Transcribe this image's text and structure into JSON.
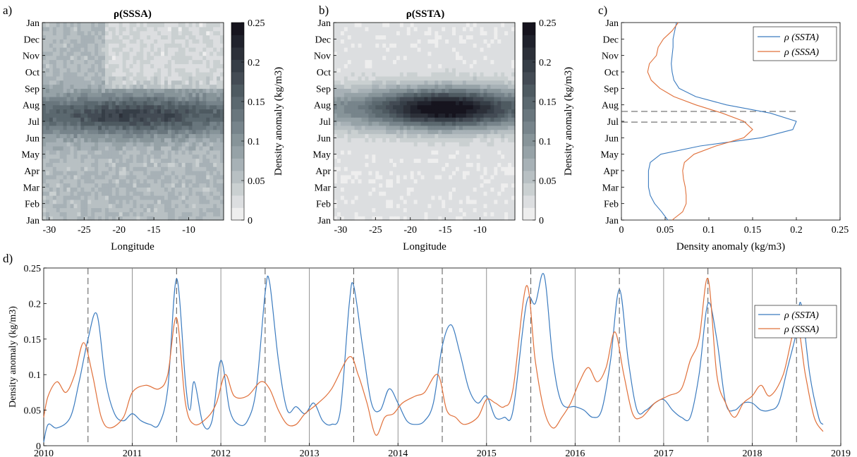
{
  "panel_labels": {
    "a": "a)",
    "b": "b)",
    "c": "c)",
    "d": "d)"
  },
  "colors": {
    "ssta": "#3b7bbf",
    "sssa": "#e0703a",
    "dash": "#555555",
    "cmap_low": "#eeeeee",
    "cmap_high": "#111111"
  },
  "chart_data": [
    {
      "type": "heatmap",
      "title": "ρ(SSSA)",
      "xlabel": "Longitude",
      "ylabel": "",
      "xlim": [
        -31,
        -5
      ],
      "xticks": [
        -30,
        -25,
        -20,
        -15,
        -10
      ],
      "yticks": [
        "Jan",
        "Feb",
        "Mar",
        "Apr",
        "May",
        "Jun",
        "Jul",
        "Aug",
        "Sep",
        "Oct",
        "Nov",
        "Dec",
        "Jan"
      ],
      "colorbar": {
        "label": "Density anomaly (kg/m3)",
        "ticks": [
          "0",
          "0.05",
          "0.1",
          "0.15",
          "0.2",
          "0.25"
        ],
        "range": [
          0,
          0.25
        ],
        "levels": 16
      },
      "peak_month": 6.4,
      "peak_value": 0.19,
      "background_value": 0.06
    },
    {
      "type": "heatmap",
      "title": "ρ(SSTA)",
      "xlabel": "Longitude",
      "ylabel": "",
      "xlim": [
        -31,
        -5
      ],
      "xticks": [
        -30,
        -25,
        -20,
        -15,
        -10
      ],
      "yticks": [
        "Jan",
        "Feb",
        "Mar",
        "Apr",
        "May",
        "Jun",
        "Jul",
        "Aug",
        "Sep",
        "Oct",
        "Nov",
        "Dec",
        "Jan"
      ],
      "colorbar": {
        "label": "Density anomaly (kg/m3)",
        "ticks": [
          "0",
          "0.05",
          "0.1",
          "0.15",
          "0.2",
          "0.25"
        ],
        "range": [
          0,
          0.25
        ],
        "levels": 16
      },
      "peak_month": 6.8,
      "peak_value": 0.26,
      "background_value": 0.02
    },
    {
      "type": "line",
      "xlabel": "Density anomaly (kg/m3)",
      "ylabel": "",
      "xlim": [
        0,
        0.25
      ],
      "xticks": [
        "0",
        "0.05",
        "0.1",
        "0.15",
        "0.2",
        "0.25"
      ],
      "yticks": [
        "Jan",
        "Feb",
        "Mar",
        "Apr",
        "May",
        "Jun",
        "Jul",
        "Aug",
        "Sep",
        "Oct",
        "Nov",
        "Dec",
        "Jan"
      ],
      "legend": {
        "position": "top-right",
        "entries": [
          "ρ (SSTA)",
          "ρ (SSSA)"
        ]
      },
      "month": [
        0,
        0.5,
        1,
        1.5,
        2,
        2.5,
        3,
        3.5,
        4,
        4.5,
        5,
        5.5,
        6,
        6.5,
        7,
        7.5,
        8,
        8.5,
        9,
        9.5,
        10,
        10.5,
        11,
        11.5,
        12
      ],
      "series": [
        {
          "name": "ρ (SSTA)",
          "values": [
            0.053,
            0.046,
            0.038,
            0.033,
            0.031,
            0.031,
            0.031,
            0.033,
            0.045,
            0.09,
            0.16,
            0.196,
            0.2,
            0.17,
            0.12,
            0.085,
            0.066,
            0.06,
            0.058,
            0.057,
            0.058,
            0.059,
            0.059,
            0.061,
            0.063
          ]
        },
        {
          "name": "ρ (SSSA)",
          "values": [
            0.058,
            0.07,
            0.074,
            0.074,
            0.073,
            0.071,
            0.07,
            0.072,
            0.083,
            0.108,
            0.14,
            0.15,
            0.14,
            0.115,
            0.085,
            0.06,
            0.044,
            0.034,
            0.03,
            0.032,
            0.04,
            0.042,
            0.048,
            0.058,
            0.065
          ]
        }
      ],
      "dashed_lines_at_month": [
        6.6,
        5.95
      ]
    },
    {
      "type": "line",
      "xlabel": "",
      "ylabel": "Density anomaly (kg/m3)",
      "xlim": [
        2010,
        2019
      ],
      "ylim": [
        0,
        0.25
      ],
      "xticks": [
        "2010",
        "2011",
        "2012",
        "2013",
        "2014",
        "2015",
        "2016",
        "2017",
        "2018",
        "2019"
      ],
      "yticks": [
        "0",
        "0.05",
        "0.1",
        "0.15",
        "0.2",
        "0.25"
      ],
      "legend": {
        "position": "top-right",
        "entries": [
          "ρ (SSTA)",
          "ρ (SSSA)"
        ]
      },
      "dashed_lines_at_year": [
        2010.5,
        2011.5,
        2012.5,
        2013.5,
        2014.5,
        2015.5,
        2016.5,
        2017.5,
        2018.5
      ],
      "series": [
        {
          "name": "ρ (SSTA)",
          "points": [
            [
              2010.0,
              0.005
            ],
            [
              2010.05,
              0.03
            ],
            [
              2010.15,
              0.025
            ],
            [
              2010.3,
              0.04
            ],
            [
              2010.4,
              0.09
            ],
            [
              2010.5,
              0.15
            ],
            [
              2010.6,
              0.185
            ],
            [
              2010.7,
              0.09
            ],
            [
              2010.8,
              0.045
            ],
            [
              2010.9,
              0.035
            ],
            [
              2011.0,
              0.045
            ],
            [
              2011.1,
              0.035
            ],
            [
              2011.2,
              0.03
            ],
            [
              2011.3,
              0.03
            ],
            [
              2011.4,
              0.08
            ],
            [
              2011.5,
              0.235
            ],
            [
              2011.6,
              0.09
            ],
            [
              2011.65,
              0.05
            ],
            [
              2011.7,
              0.09
            ],
            [
              2011.8,
              0.03
            ],
            [
              2011.9,
              0.035
            ],
            [
              2012.0,
              0.12
            ],
            [
              2012.1,
              0.05
            ],
            [
              2012.2,
              0.03
            ],
            [
              2012.3,
              0.035
            ],
            [
              2012.4,
              0.08
            ],
            [
              2012.5,
              0.215
            ],
            [
              2012.55,
              0.23
            ],
            [
              2012.65,
              0.12
            ],
            [
              2012.75,
              0.05
            ],
            [
              2012.85,
              0.055
            ],
            [
              2012.95,
              0.045
            ],
            [
              2013.05,
              0.06
            ],
            [
              2013.15,
              0.035
            ],
            [
              2013.25,
              0.03
            ],
            [
              2013.35,
              0.05
            ],
            [
              2013.45,
              0.2
            ],
            [
              2013.5,
              0.225
            ],
            [
              2013.6,
              0.14
            ],
            [
              2013.7,
              0.06
            ],
            [
              2013.8,
              0.05
            ],
            [
              2013.9,
              0.08
            ],
            [
              2014.0,
              0.06
            ],
            [
              2014.1,
              0.035
            ],
            [
              2014.2,
              0.03
            ],
            [
              2014.3,
              0.035
            ],
            [
              2014.4,
              0.06
            ],
            [
              2014.5,
              0.14
            ],
            [
              2014.6,
              0.17
            ],
            [
              2014.7,
              0.13
            ],
            [
              2014.8,
              0.08
            ],
            [
              2014.9,
              0.06
            ],
            [
              2015.0,
              0.07
            ],
            [
              2015.1,
              0.04
            ],
            [
              2015.2,
              0.04
            ],
            [
              2015.3,
              0.05
            ],
            [
              2015.45,
              0.2
            ],
            [
              2015.55,
              0.2
            ],
            [
              2015.65,
              0.24
            ],
            [
              2015.75,
              0.12
            ],
            [
              2015.85,
              0.06
            ],
            [
              2016.0,
              0.055
            ],
            [
              2016.1,
              0.05
            ],
            [
              2016.2,
              0.04
            ],
            [
              2016.3,
              0.05
            ],
            [
              2016.4,
              0.12
            ],
            [
              2016.5,
              0.22
            ],
            [
              2016.6,
              0.12
            ],
            [
              2016.7,
              0.05
            ],
            [
              2016.8,
              0.05
            ],
            [
              2016.9,
              0.06
            ],
            [
              2017.0,
              0.065
            ],
            [
              2017.1,
              0.05
            ],
            [
              2017.2,
              0.04
            ],
            [
              2017.3,
              0.04
            ],
            [
              2017.4,
              0.1
            ],
            [
              2017.5,
              0.2
            ],
            [
              2017.6,
              0.15
            ],
            [
              2017.7,
              0.06
            ],
            [
              2017.8,
              0.05
            ],
            [
              2017.9,
              0.06
            ],
            [
              2018.0,
              0.06
            ],
            [
              2018.1,
              0.05
            ],
            [
              2018.2,
              0.05
            ],
            [
              2018.3,
              0.06
            ],
            [
              2018.4,
              0.11
            ],
            [
              2018.5,
              0.16
            ],
            [
              2018.55,
              0.2
            ],
            [
              2018.65,
              0.1
            ],
            [
              2018.75,
              0.04
            ],
            [
              2018.8,
              0.03
            ]
          ]
        },
        {
          "name": "ρ (SSSA)",
          "points": [
            [
              2010.0,
              0.04
            ],
            [
              2010.05,
              0.07
            ],
            [
              2010.15,
              0.09
            ],
            [
              2010.25,
              0.075
            ],
            [
              2010.35,
              0.1
            ],
            [
              2010.45,
              0.145
            ],
            [
              2010.55,
              0.1
            ],
            [
              2010.65,
              0.04
            ],
            [
              2010.75,
              0.025
            ],
            [
              2010.9,
              0.04
            ],
            [
              2011.0,
              0.075
            ],
            [
              2011.15,
              0.085
            ],
            [
              2011.3,
              0.08
            ],
            [
              2011.4,
              0.1
            ],
            [
              2011.5,
              0.18
            ],
            [
              2011.6,
              0.06
            ],
            [
              2011.7,
              0.03
            ],
            [
              2011.85,
              0.04
            ],
            [
              2011.95,
              0.06
            ],
            [
              2012.05,
              0.1
            ],
            [
              2012.15,
              0.07
            ],
            [
              2012.3,
              0.07
            ],
            [
              2012.45,
              0.09
            ],
            [
              2012.55,
              0.08
            ],
            [
              2012.65,
              0.05
            ],
            [
              2012.75,
              0.03
            ],
            [
              2012.85,
              0.03
            ],
            [
              2012.95,
              0.045
            ],
            [
              2013.1,
              0.06
            ],
            [
              2013.25,
              0.08
            ],
            [
              2013.45,
              0.125
            ],
            [
              2013.55,
              0.1
            ],
            [
              2013.65,
              0.06
            ],
            [
              2013.75,
              0.015
            ],
            [
              2013.85,
              0.04
            ],
            [
              2013.95,
              0.045
            ],
            [
              2014.05,
              0.06
            ],
            [
              2014.2,
              0.07
            ],
            [
              2014.3,
              0.075
            ],
            [
              2014.45,
              0.1
            ],
            [
              2014.55,
              0.05
            ],
            [
              2014.65,
              0.04
            ],
            [
              2014.75,
              0.03
            ],
            [
              2014.9,
              0.04
            ],
            [
              2015.0,
              0.065
            ],
            [
              2015.1,
              0.06
            ],
            [
              2015.2,
              0.055
            ],
            [
              2015.3,
              0.08
            ],
            [
              2015.45,
              0.225
            ],
            [
              2015.55,
              0.12
            ],
            [
              2015.65,
              0.05
            ],
            [
              2015.75,
              0.025
            ],
            [
              2015.85,
              0.04
            ],
            [
              2015.95,
              0.06
            ],
            [
              2016.05,
              0.09
            ],
            [
              2016.15,
              0.11
            ],
            [
              2016.25,
              0.09
            ],
            [
              2016.35,
              0.11
            ],
            [
              2016.45,
              0.16
            ],
            [
              2016.55,
              0.1
            ],
            [
              2016.65,
              0.045
            ],
            [
              2016.75,
              0.04
            ],
            [
              2016.9,
              0.06
            ],
            [
              2017.05,
              0.07
            ],
            [
              2017.2,
              0.08
            ],
            [
              2017.3,
              0.12
            ],
            [
              2017.4,
              0.15
            ],
            [
              2017.5,
              0.235
            ],
            [
              2017.6,
              0.1
            ],
            [
              2017.7,
              0.06
            ],
            [
              2017.8,
              0.04
            ],
            [
              2017.9,
              0.06
            ],
            [
              2018.0,
              0.07
            ],
            [
              2018.1,
              0.085
            ],
            [
              2018.2,
              0.07
            ],
            [
              2018.35,
              0.1
            ],
            [
              2018.5,
              0.17
            ],
            [
              2018.6,
              0.1
            ],
            [
              2018.7,
              0.04
            ],
            [
              2018.8,
              0.02
            ]
          ]
        }
      ]
    }
  ]
}
